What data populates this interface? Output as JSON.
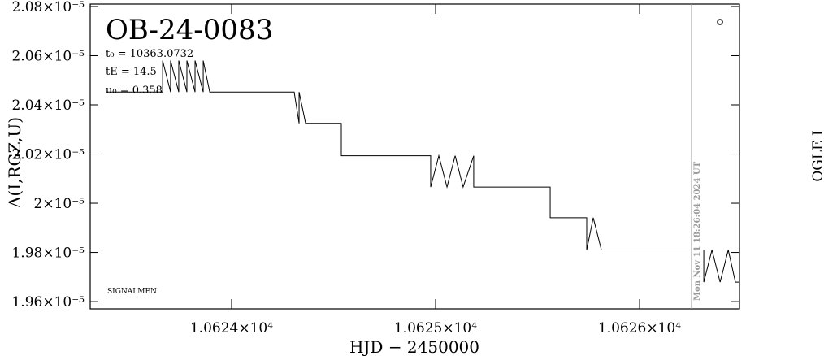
{
  "chart_data": {
    "type": "line",
    "title": "OB-24-0083",
    "parameters": [
      "t₀ = 10363.0732",
      "tE = 14.5",
      "u₀ = 0.358"
    ],
    "note": "SIGNALMEN",
    "side_label": "OGLE I",
    "x_label": "HJD − 2450000",
    "y_label": "Δ(I,RGZ,U)",
    "color": "#000000",
    "x": [
      10623.383,
      10623.662,
      10623.662,
      10623.701,
      10623.701,
      10623.741,
      10623.741,
      10623.781,
      10623.781,
      10623.821,
      10623.821,
      10623.861,
      10623.861,
      10623.893,
      10624.307,
      10624.331,
      10624.331,
      10624.363,
      10624.538,
      10624.538,
      10624.976,
      10624.976,
      10625.016,
      10625.056,
      10625.096,
      10625.135,
      10625.187,
      10625.187,
      10625.562,
      10625.562,
      10625.741,
      10625.741,
      10625.773,
      10625.813,
      10626.315,
      10626.315,
      10626.355,
      10626.395,
      10626.435,
      10626.47,
      10626.49
    ],
    "values": [
      2.0452e-05,
      2.0452e-05,
      2.058e-05,
      2.0452e-05,
      2.058e-05,
      2.0452e-05,
      2.058e-05,
      2.0452e-05,
      2.058e-05,
      2.0452e-05,
      2.058e-05,
      2.0452e-05,
      2.058e-05,
      2.0452e-05,
      2.0452e-05,
      2.0325e-05,
      2.0452e-05,
      2.0325e-05,
      2.0325e-05,
      2.0193e-05,
      2.0193e-05,
      2.0066e-05,
      2.0193e-05,
      2.0066e-05,
      2.0193e-05,
      2.0066e-05,
      2.0193e-05,
      2.0066e-05,
      2.0066e-05,
      1.9941e-05,
      1.9941e-05,
      1.981e-05,
      1.9941e-05,
      1.981e-05,
      1.981e-05,
      1.9679e-05,
      1.981e-05,
      1.9679e-05,
      1.981e-05,
      1.9679e-05,
      1.9679e-05
    ],
    "xlim": [
      10623.307,
      10626.49
    ],
    "ylim": [
      1.95705e-05,
      2.08098e-05
    ],
    "xticks": [
      {
        "value": 10624,
        "label": "1.0624×10⁴"
      },
      {
        "value": 10625,
        "label": "1.0625×10⁴"
      },
      {
        "value": 10626,
        "label": "1.0626×10⁴"
      }
    ],
    "yticks": [
      {
        "value": 2.08e-05,
        "label": "2.08×10⁻⁵"
      },
      {
        "value": 2.06e-05,
        "label": "2.06×10⁻⁵"
      },
      {
        "value": 2.04e-05,
        "label": "2.04×10⁻⁵"
      },
      {
        "value": 2.02e-05,
        "label": "2.02×10⁻⁵"
      },
      {
        "value": 2e-05,
        "label": "2×10⁻⁵"
      },
      {
        "value": 1.98e-05,
        "label": "1.98×10⁻⁵"
      },
      {
        "value": 1.96e-05,
        "label": "1.96×10⁻⁵"
      }
    ],
    "now_line": {
      "x": 10626.255,
      "label": "Mon Nov 11 18:26:04 2024 UT",
      "color": "#999999"
    }
  }
}
